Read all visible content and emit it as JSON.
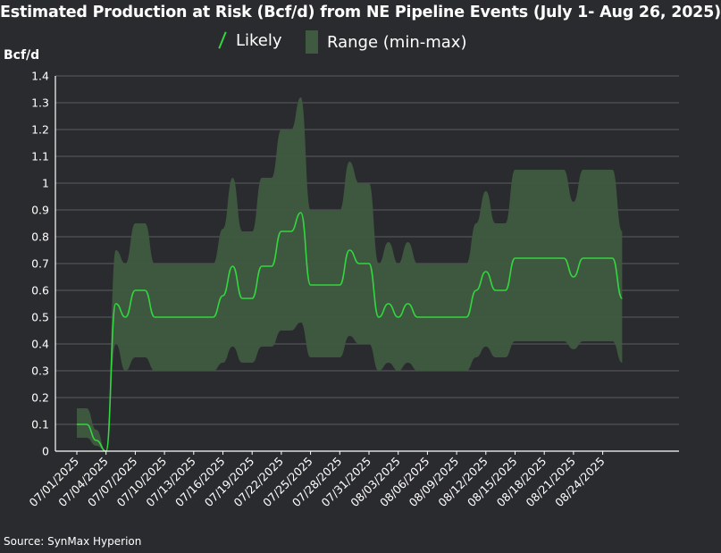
{
  "chart_data": {
    "type": "area",
    "title": "Estimated Production at Risk (Bcf/d) from NE Pipeline Events (July 1- Aug 26, 2025)",
    "ylabel": "Bcf/d",
    "xlabel": "",
    "ylim": [
      0,
      1.4
    ],
    "yticks": [
      "0",
      "0.1",
      "0.2",
      "0.3",
      "0.4",
      "0.5",
      "0.6",
      "0.7",
      "0.8",
      "0.9",
      "1",
      "1.1",
      "1.2",
      "1.3",
      "1.4"
    ],
    "grid": "horizontal",
    "legend_position": "top-center",
    "source": "Source: SynMax Hyperion",
    "x": [
      "07/01/2025",
      "07/02/2025",
      "07/03/2025",
      "07/04/2025",
      "07/05/2025",
      "07/06/2025",
      "07/07/2025",
      "07/08/2025",
      "07/09/2025",
      "07/10/2025",
      "07/11/2025",
      "07/12/2025",
      "07/13/2025",
      "07/14/2025",
      "07/15/2025",
      "07/16/2025",
      "07/17/2025",
      "07/18/2025",
      "07/19/2025",
      "07/20/2025",
      "07/21/2025",
      "07/22/2025",
      "07/23/2025",
      "07/24/2025",
      "07/25/2025",
      "07/26/2025",
      "07/27/2025",
      "07/28/2025",
      "07/29/2025",
      "07/30/2025",
      "07/31/2025",
      "08/01/2025",
      "08/02/2025",
      "08/03/2025",
      "08/04/2025",
      "08/05/2025",
      "08/06/2025",
      "08/07/2025",
      "08/08/2025",
      "08/09/2025",
      "08/10/2025",
      "08/11/2025",
      "08/12/2025",
      "08/13/2025",
      "08/14/2025",
      "08/15/2025",
      "08/16/2025",
      "08/17/2025",
      "08/18/2025",
      "08/19/2025",
      "08/20/2025",
      "08/21/2025",
      "08/22/2025",
      "08/23/2025",
      "08/24/2025",
      "08/25/2025",
      "08/26/2025"
    ],
    "xticks": [
      "07/01/2025",
      "07/04/2025",
      "07/07/2025",
      "07/10/2025",
      "07/13/2025",
      "07/16/2025",
      "07/19/2025",
      "07/22/2025",
      "07/25/2025",
      "07/28/2025",
      "07/31/2025",
      "08/03/2025",
      "08/06/2025",
      "08/09/2025",
      "08/12/2025",
      "08/15/2025",
      "08/18/2025",
      "08/21/2025",
      "08/24/2025"
    ],
    "series": [
      {
        "name": "Likely",
        "type": "line",
        "color": "#33d63f",
        "values": [
          0.1,
          0.1,
          0.04,
          0.0,
          0.55,
          0.5,
          0.6,
          0.6,
          0.5,
          0.5,
          0.5,
          0.5,
          0.5,
          0.5,
          0.5,
          0.58,
          0.69,
          0.57,
          0.57,
          0.69,
          0.69,
          0.82,
          0.82,
          0.89,
          0.62,
          0.62,
          0.62,
          0.62,
          0.75,
          0.7,
          0.7,
          0.5,
          0.55,
          0.5,
          0.55,
          0.5,
          0.5,
          0.5,
          0.5,
          0.5,
          0.5,
          0.6,
          0.67,
          0.6,
          0.6,
          0.72,
          0.72,
          0.72,
          0.72,
          0.72,
          0.72,
          0.65,
          0.72,
          0.72,
          0.72,
          0.72,
          0.57
        ]
      },
      {
        "name": "Range (min-max)",
        "type": "band",
        "color": "#3f5a40",
        "min": [
          0.05,
          0.05,
          0.02,
          0.0,
          0.4,
          0.3,
          0.35,
          0.35,
          0.3,
          0.3,
          0.3,
          0.3,
          0.3,
          0.3,
          0.3,
          0.33,
          0.39,
          0.33,
          0.33,
          0.39,
          0.39,
          0.45,
          0.45,
          0.48,
          0.35,
          0.35,
          0.35,
          0.35,
          0.43,
          0.4,
          0.4,
          0.3,
          0.33,
          0.3,
          0.33,
          0.3,
          0.3,
          0.3,
          0.3,
          0.3,
          0.3,
          0.35,
          0.39,
          0.35,
          0.35,
          0.41,
          0.41,
          0.41,
          0.41,
          0.41,
          0.41,
          0.38,
          0.41,
          0.41,
          0.41,
          0.41,
          0.33
        ],
        "max": [
          0.16,
          0.16,
          0.08,
          0.0,
          0.75,
          0.7,
          0.85,
          0.85,
          0.7,
          0.7,
          0.7,
          0.7,
          0.7,
          0.7,
          0.7,
          0.83,
          1.02,
          0.82,
          0.82,
          1.02,
          1.02,
          1.2,
          1.2,
          1.32,
          0.9,
          0.9,
          0.9,
          0.9,
          1.08,
          1.0,
          1.0,
          0.7,
          0.78,
          0.7,
          0.78,
          0.7,
          0.7,
          0.7,
          0.7,
          0.7,
          0.7,
          0.85,
          0.97,
          0.85,
          0.85,
          1.05,
          1.05,
          1.05,
          1.05,
          1.05,
          1.05,
          0.93,
          1.05,
          1.05,
          1.05,
          1.05,
          0.82
        ]
      }
    ]
  }
}
